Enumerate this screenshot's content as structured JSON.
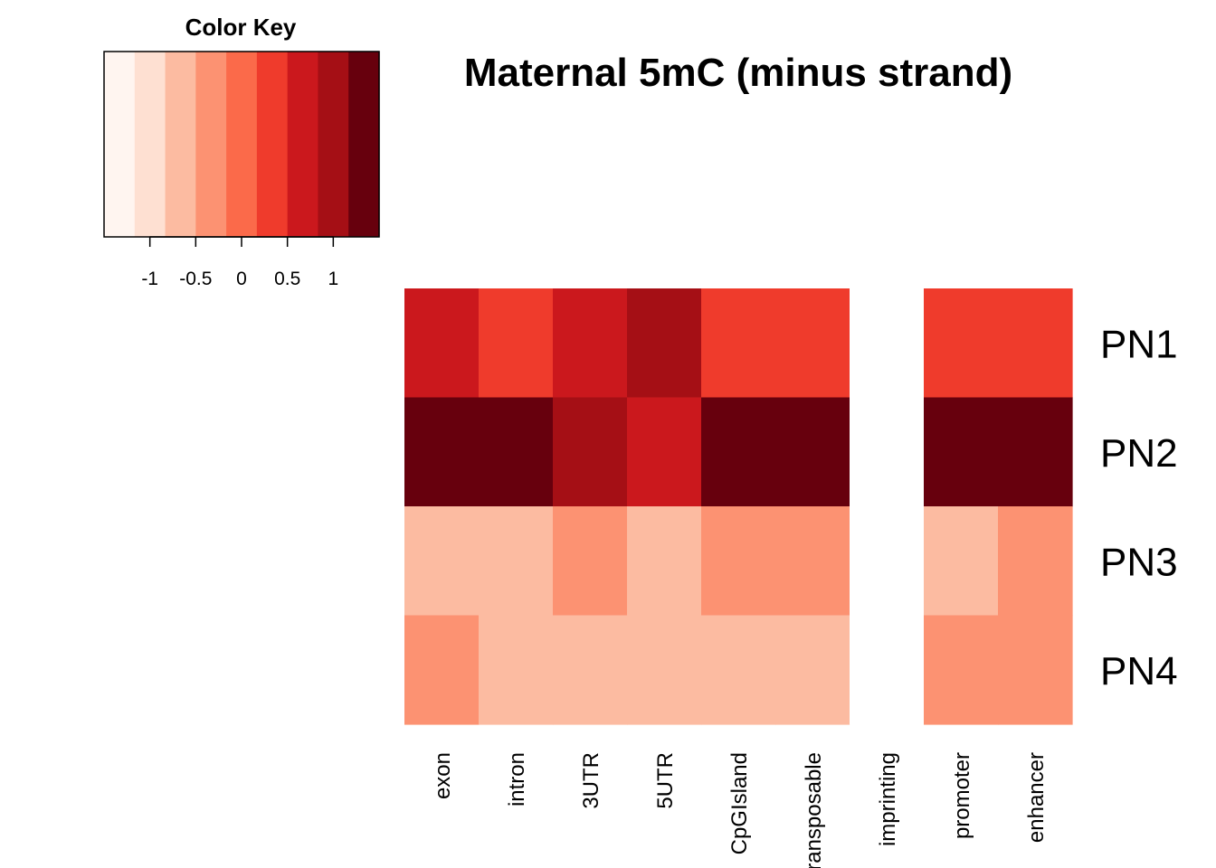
{
  "chart_data": {
    "type": "heatmap",
    "title": "Maternal 5mC  (minus strand)",
    "rows": [
      "PN1",
      "PN2",
      "PN3",
      "PN4"
    ],
    "columns": [
      "exon",
      "intron",
      "3UTR",
      "5UTR",
      "CpGIsland",
      "transposable",
      "imprinting",
      "promoter",
      "enhancer"
    ],
    "values": [
      [
        0.75,
        0.45,
        0.75,
        1.0,
        0.25,
        0.45,
        null,
        0.45,
        0.25
      ],
      [
        1.25,
        1.25,
        1.0,
        0.75,
        1.25,
        1.25,
        null,
        1.25,
        1.25
      ],
      [
        -0.75,
        -0.75,
        -0.5,
        -0.75,
        -0.25,
        -0.5,
        null,
        -0.75,
        -0.5
      ],
      [
        -0.5,
        -0.75,
        -0.75,
        -0.75,
        -0.75,
        -0.75,
        null,
        -0.5,
        -0.5
      ]
    ],
    "color_key": {
      "title": "Color Key",
      "range": [
        -1.5,
        1.5
      ],
      "colors": [
        "#fff5f0",
        "#fee0d2",
        "#fcbba1",
        "#fc9272",
        "#fb6a4a",
        "#ef3b2c",
        "#cb181d",
        "#a50f15",
        "#67000d"
      ],
      "ticks": [
        -1,
        -0.5,
        0,
        0.5,
        1
      ],
      "tick_labels": [
        "-1",
        "-0.5",
        "0",
        "0.5",
        "1"
      ]
    },
    "missing_color": "#ffffff",
    "legend_position": "top-left"
  }
}
